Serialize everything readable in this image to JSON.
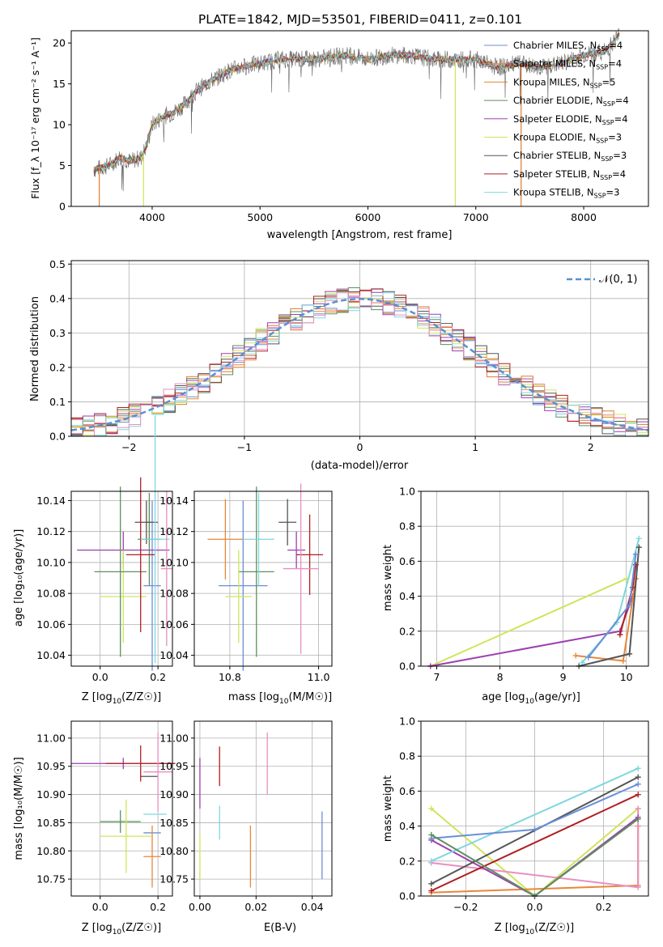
{
  "figure": {
    "title": "PLATE=1842, MJD=53501, FIBERID=0411, z=0.101"
  },
  "colors": {
    "palette": [
      "#6a8fd8",
      "#e8873a",
      "#e27a2a",
      "#5e8f5e",
      "#9d3fb0",
      "#cfe55a",
      "#555555",
      "#b01f22",
      "#7fd7df",
      "#e88fc0"
    ]
  },
  "chart_data": [
    {
      "id": "spectrum",
      "type": "line",
      "title": "PLATE=1842, MJD=53501, FIBERID=0411, z=0.101",
      "xlabel": "wavelength [Angstrom, rest frame]",
      "ylabel": "Flux [f_λ 10⁻¹⁷ erg cm⁻² s⁻¹ A⁻¹]",
      "xlim": [
        3250,
        8600
      ],
      "ylim": [
        0,
        21.5
      ],
      "xticks": [
        "4000",
        "5000",
        "6000",
        "7000",
        "8000"
      ],
      "yticks": [
        "0",
        "5",
        "10",
        "15",
        "20"
      ],
      "grid": false,
      "legend_position": "right",
      "series": [
        {
          "name": "Chabrier MILES, N_SSP=4",
          "label_main": "Chabrier MILES, N",
          "label_sub": "SSP",
          "label_tail": "=4",
          "color": "#6a8fd8"
        },
        {
          "name": "Salpeter MILES, N_SSP=4",
          "label_main": "Salpeter MILES, N",
          "label_sub": "SSP",
          "label_tail": "=4",
          "color": "#e8873a"
        },
        {
          "name": "Kroupa MILES, N_SSP=5",
          "label_main": "Kroupa MILES, N",
          "label_sub": "SSP",
          "label_tail": "=5",
          "color": "#d98a2a"
        },
        {
          "name": "Chabrier ELODIE, N_SSP=4",
          "label_main": "Chabrier ELODIE, N",
          "label_sub": "SSP",
          "label_tail": "=4",
          "color": "#5e8f5e"
        },
        {
          "name": "Salpeter ELODIE, N_SSP=4",
          "label_main": "Salpeter ELODIE, N",
          "label_sub": "SSP",
          "label_tail": "=4",
          "color": "#9d3fb0"
        },
        {
          "name": "Kroupa ELODIE, N_SSP=3",
          "label_main": "Kroupa ELODIE, N",
          "label_sub": "SSP",
          "label_tail": "=3",
          "color": "#cfe55a"
        },
        {
          "name": "Chabrier STELIB, N_SSP=3",
          "label_main": "Chabrier STELIB, N",
          "label_sub": "SSP",
          "label_tail": "=3",
          "color": "#555555"
        },
        {
          "name": "Salpeter STELIB, N_SSP=4",
          "label_main": "Salpeter STELIB, N",
          "label_sub": "SSP",
          "label_tail": "=4",
          "color": "#b01f22"
        },
        {
          "name": "Kroupa STELIB, N_SSP=3",
          "label_main": "Kroupa STELIB, N",
          "label_sub": "SSP",
          "label_tail": "=3",
          "color": "#7fd7df"
        }
      ],
      "approx_continuum": {
        "x": [
          3460,
          3600,
          3700,
          3800,
          3900,
          3950,
          4000,
          4100,
          4200,
          4300,
          4400,
          4500,
          4700,
          4800,
          5000,
          5200,
          5500,
          5800,
          6000,
          6200,
          6400,
          6600,
          6800,
          7000,
          7200,
          7400,
          7600,
          7800,
          8000,
          8200,
          8330
        ],
        "y": [
          4.5,
          5.0,
          6.0,
          5.5,
          6.0,
          7.5,
          10.0,
          11.0,
          11.5,
          12.5,
          14.0,
          15.0,
          16.5,
          17.0,
          17.5,
          18.0,
          18.0,
          18.5,
          18.0,
          18.5,
          18.5,
          18.0,
          18.0,
          18.0,
          17.0,
          17.5,
          17.0,
          17.5,
          18.5,
          19.0,
          21.0
        ]
      },
      "dropouts_x": [
        3510,
        3920,
        6810,
        7420
      ]
    },
    {
      "id": "residual-hist",
      "type": "bar",
      "xlabel": "(data-model)/error",
      "ylabel": "Normed distribution",
      "xlim": [
        -2.5,
        2.5
      ],
      "ylim": [
        0,
        0.51
      ],
      "xticks": [
        "−2",
        "−1",
        "0",
        "1",
        "2"
      ],
      "yticks": [
        "0.0",
        "0.1",
        "0.2",
        "0.3",
        "0.4",
        "0.5"
      ],
      "grid": true,
      "legend_position": "top-right",
      "reference_curve": {
        "name": "𝒩(0, 1)",
        "color": "#5b8fd5"
      },
      "bin_width": 0.1
    },
    {
      "id": "age-vs-Z",
      "type": "scatter",
      "xlabel_main": "Z [log",
      "xlabel_sub": "10",
      "xlabel_tail": "(Z/Z☉)]",
      "ylabel": "age [log₁₀(age/yr)]",
      "xlim": [
        -0.1,
        0.25
      ],
      "ylim": [
        10.033,
        10.146
      ],
      "xticks": [
        "0.0",
        "0.2"
      ],
      "yticks": [
        "10.04",
        "10.06",
        "10.08",
        "10.10",
        "10.12",
        "10.14"
      ],
      "grid": true,
      "points": [
        {
          "x": 0.18,
          "y": 10.085,
          "xerr": 0.03,
          "yerr": 0.055,
          "color": "#6a8fd8"
        },
        {
          "x": 0.17,
          "y": 10.126,
          "xerr": 0.01,
          "yerr": 0.015,
          "color": "#e8873a"
        },
        {
          "x": 0.17,
          "y": 10.115,
          "xerr": 0.04,
          "yerr": 0.03,
          "color": "#5e8f5e"
        },
        {
          "x": 0.08,
          "y": 10.108,
          "xerr": 0.16,
          "yerr": 0.012,
          "color": "#9d3fb0"
        },
        {
          "x": 0.08,
          "y": 10.078,
          "xerr": 0.08,
          "yerr": 0.03,
          "color": "#cfe55a"
        },
        {
          "x": 0.07,
          "y": 10.094,
          "xerr": 0.09,
          "yerr": 0.055,
          "color": "#5e8f5e"
        },
        {
          "x": 0.16,
          "y": 10.126,
          "xerr": 0.04,
          "yerr": 0.014,
          "color": "#555555"
        },
        {
          "x": 0.14,
          "y": 10.105,
          "xerr": 0.05,
          "yerr": 0.05,
          "color": "#b01f22"
        },
        {
          "x": 0.19,
          "y": 10.115,
          "xerr": 0.05,
          "yerr": 0.08,
          "color": "#7fd7df"
        },
        {
          "x": 0.23,
          "y": 10.096,
          "xerr": 0.02,
          "yerr": 0.05,
          "color": "#e88fc0"
        }
      ]
    },
    {
      "id": "age-vs-mass",
      "type": "scatter",
      "xlabel_main": "mass [log",
      "xlabel_sub": "10",
      "xlabel_tail": "(M/M☉)]",
      "ylabel": "",
      "xlim": [
        10.72,
        11.03
      ],
      "ylim": [
        10.033,
        10.146
      ],
      "xticks": [
        "10.8",
        "11.0"
      ],
      "yticks": [
        "10.04",
        "10.06",
        "10.08",
        "10.10",
        "10.12",
        "10.14"
      ],
      "grid": true,
      "points": [
        {
          "x": 10.83,
          "y": 10.085,
          "xerr": 0.055,
          "yerr": 0.055,
          "color": "#6a8fd8"
        },
        {
          "x": 10.79,
          "y": 10.115,
          "xerr": 0.04,
          "yerr": 0.026,
          "color": "#e8873a"
        },
        {
          "x": 10.86,
          "y": 10.094,
          "xerr": 0.04,
          "yerr": 0.055,
          "color": "#5e8f5e"
        },
        {
          "x": 10.95,
          "y": 10.108,
          "xerr": 0.02,
          "yerr": 0.012,
          "color": "#9d3fb0"
        },
        {
          "x": 10.82,
          "y": 10.078,
          "xerr": 0.03,
          "yerr": 0.03,
          "color": "#cfe55a"
        },
        {
          "x": 10.93,
          "y": 10.126,
          "xerr": 0.02,
          "yerr": 0.015,
          "color": "#555555"
        },
        {
          "x": 10.98,
          "y": 10.105,
          "xerr": 0.03,
          "yerr": 0.026,
          "color": "#b01f22"
        },
        {
          "x": 10.865,
          "y": 10.115,
          "xerr": 0.035,
          "yerr": 0.03,
          "color": "#7fd7df"
        },
        {
          "x": 10.96,
          "y": 10.096,
          "xerr": 0.04,
          "yerr": 0.055,
          "color": "#e88fc0"
        }
      ]
    },
    {
      "id": "weight-vs-age",
      "type": "line",
      "xlabel_main": "age [log",
      "xlabel_sub": "10",
      "xlabel_tail": "(age/yr)]",
      "ylabel": "mass weight",
      "xlim": [
        6.75,
        10.35
      ],
      "ylim": [
        0,
        1.0
      ],
      "xticks": [
        "7",
        "8",
        "9",
        "10"
      ],
      "yticks": [
        "0.0",
        "0.2",
        "0.4",
        "0.6",
        "0.8",
        "1.0"
      ],
      "grid": true
    },
    {
      "id": "mass-vs-Z",
      "type": "scatter",
      "xlabel_main": "Z [log",
      "xlabel_sub": "10",
      "xlabel_tail": "(Z/Z☉)]",
      "ylabel": "mass [log₁₀(M/M☉)]",
      "xlim": [
        -0.1,
        0.25
      ],
      "ylim": [
        10.72,
        11.03
      ],
      "xticks": [
        "0.0",
        "0.2"
      ],
      "yticks": [
        "10.75",
        "10.80",
        "10.85",
        "10.90",
        "10.95",
        "11.00"
      ],
      "grid": true,
      "points": [
        {
          "x": 0.18,
          "y": 10.832,
          "xerr": 0.03,
          "yerr": 0.0,
          "color": "#6a8fd8"
        },
        {
          "x": 0.18,
          "y": 10.79,
          "xerr": 0.03,
          "yerr": 0.055,
          "color": "#e8873a"
        },
        {
          "x": 0.07,
          "y": 10.852,
          "xerr": 0.07,
          "yerr": 0.02,
          "color": "#5e8f5e"
        },
        {
          "x": 0.08,
          "y": 10.955,
          "xerr": 0.18,
          "yerr": 0.01,
          "color": "#9d3fb0"
        },
        {
          "x": 0.09,
          "y": 10.826,
          "xerr": 0.09,
          "yerr": 0.065,
          "color": "#cfe55a"
        },
        {
          "x": 0.17,
          "y": 10.932,
          "xerr": 0.03,
          "yerr": 0.0,
          "color": "#555555"
        },
        {
          "x": 0.14,
          "y": 10.955,
          "xerr": 0.12,
          "yerr": 0.032,
          "color": "#b01f22"
        },
        {
          "x": 0.19,
          "y": 10.865,
          "xerr": 0.04,
          "yerr": 0.0,
          "color": "#7fd7df"
        },
        {
          "x": 0.2,
          "y": 10.94,
          "xerr": 0.05,
          "yerr": 0.07,
          "color": "#e88fc0"
        }
      ]
    },
    {
      "id": "mass-vs-EBV",
      "type": "scatter",
      "xlabel": "E(B-V)",
      "ylabel": "",
      "xlim": [
        -0.002,
        0.047
      ],
      "ylim": [
        10.72,
        11.03
      ],
      "xticks": [
        "0.00",
        "0.02",
        "0.04"
      ],
      "yticks": [
        "10.75",
        "10.80",
        "10.85",
        "10.90",
        "10.95",
        "11.00"
      ],
      "grid": true,
      "points": [
        {
          "x": 0.0,
          "y": 10.92,
          "yerr": 0.045,
          "color": "#9d3fb0"
        },
        {
          "x": 0.0,
          "y": 10.79,
          "yerr": 0.04,
          "color": "#cfe55a"
        },
        {
          "x": 0.007,
          "y": 10.95,
          "yerr": 0.035,
          "color": "#b01f22"
        },
        {
          "x": 0.007,
          "y": 10.85,
          "yerr": 0.03,
          "color": "#7fd7df"
        },
        {
          "x": 0.018,
          "y": 10.79,
          "yerr": 0.055,
          "color": "#e8873a"
        },
        {
          "x": 0.024,
          "y": 10.955,
          "yerr": 0.055,
          "color": "#e88fc0"
        },
        {
          "x": 0.0435,
          "y": 10.81,
          "yerr": 0.06,
          "color": "#6a8fd8"
        }
      ]
    },
    {
      "id": "weight-vs-Z",
      "type": "line",
      "xlabel_main": "Z [log",
      "xlabel_sub": "10",
      "xlabel_tail": "(Z/Z☉)]",
      "ylabel": "mass weight",
      "xlim": [
        -0.33,
        0.33
      ],
      "ylim": [
        0,
        1.0
      ],
      "xticks": [
        "−0.2",
        "0.0",
        "0.2"
      ],
      "yticks": [
        "0.0",
        "0.2",
        "0.4",
        "0.6",
        "0.8",
        "1.0"
      ],
      "grid": true
    }
  ]
}
